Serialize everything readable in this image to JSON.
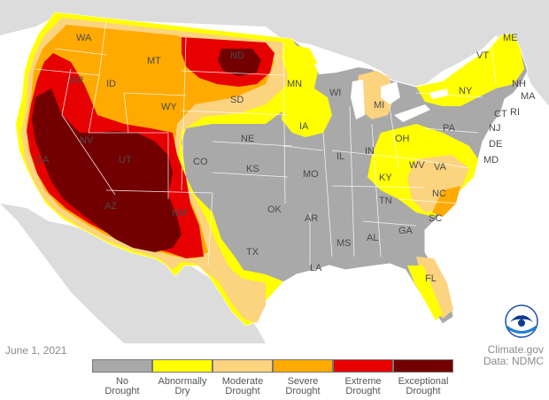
{
  "date": "June 1, 2021",
  "credit": {
    "line1": "Climate.gov",
    "line2": "Data: NDMC"
  },
  "logo_text": "NOAA",
  "colors": {
    "none": "#a9a9a9",
    "abnormally_dry": "#ffff00",
    "moderate": "#fcd37f",
    "severe": "#ffaa00",
    "extreme": "#e60000",
    "exceptional": "#730000",
    "land_outside": "#d9d9d9",
    "water": "#ffffff"
  },
  "legend": [
    {
      "line1": "No",
      "line2": "Drought",
      "color": "#a9a9a9"
    },
    {
      "line1": "Abnormally",
      "line2": "Dry",
      "color": "#ffff00"
    },
    {
      "line1": "Moderate",
      "line2": "Drought",
      "color": "#fcd37f"
    },
    {
      "line1": "Severe",
      "line2": "Drought",
      "color": "#ffaa00"
    },
    {
      "line1": "Extreme",
      "line2": "Drought",
      "color": "#e60000"
    },
    {
      "line1": "Exceptional",
      "line2": "Drought",
      "color": "#730000"
    }
  ],
  "states": {
    "WA": "WA",
    "OR": "OR",
    "CA": "CA",
    "NV": "NV",
    "ID": "ID",
    "MT": "MT",
    "WY": "WY",
    "UT": "UT",
    "AZ": "AZ",
    "CO": "CO",
    "NM": "NM",
    "ND": "ND",
    "SD": "SD",
    "NE": "NE",
    "KS": "KS",
    "OK": "OK",
    "TX": "TX",
    "MN": "MN",
    "IA": "IA",
    "MO": "MO",
    "AR": "AR",
    "LA": "LA",
    "WI": "WI",
    "IL": "IL",
    "MI": "MI",
    "IN": "IN",
    "OH": "OH",
    "KY": "KY",
    "TN": "TN",
    "MS": "MS",
    "AL": "AL",
    "GA": "GA",
    "FL": "FL",
    "SC": "SC",
    "NC": "NC",
    "VA": "VA",
    "WV": "WV",
    "PA": "PA",
    "NY": "NY",
    "VT": "VT",
    "NH": "NH",
    "ME": "ME",
    "MA": "MA",
    "RI": "RI",
    "CT": "CT",
    "NJ": "NJ",
    "DE": "DE",
    "MD": "MD"
  }
}
